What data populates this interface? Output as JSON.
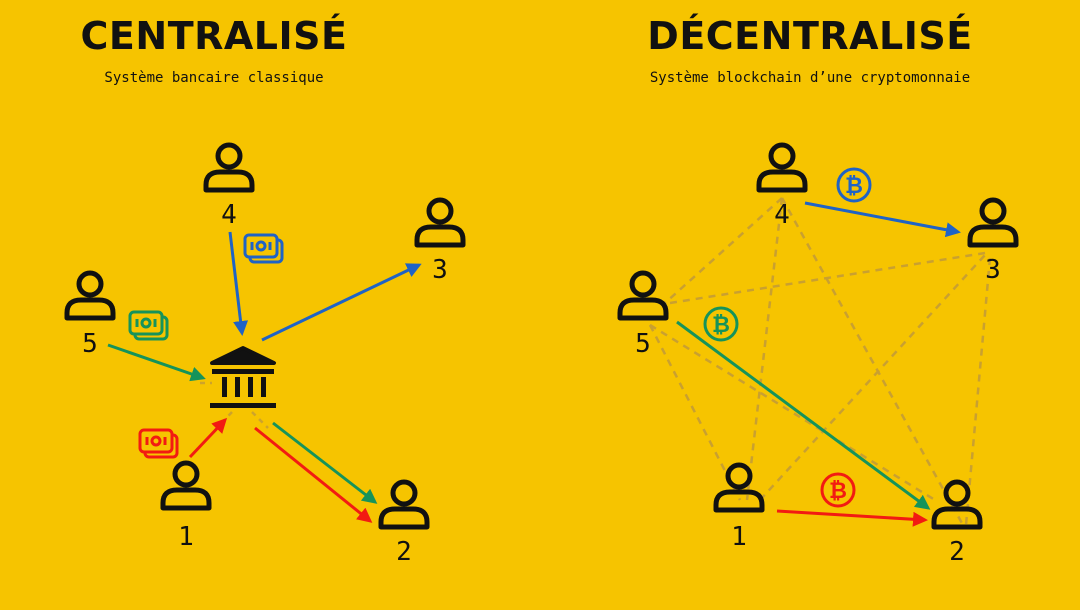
{
  "centralized": {
    "title": "CENTRALISÉ",
    "subtitle": "Système bancaire classique",
    "node_labels": [
      "1",
      "2",
      "3",
      "4",
      "5"
    ]
  },
  "decentralized": {
    "title": "DÉCENTRALISÉ",
    "subtitle": "Système blockchain d’une cryptomonnaie",
    "node_labels": [
      "1",
      "2",
      "3",
      "4",
      "5"
    ]
  },
  "icons": {
    "person": "user-icon",
    "bank": "bank-icon",
    "cash": "cash-icon",
    "bitcoin": "bitcoin-icon"
  },
  "colors": {
    "background": "#F6C400",
    "ink": "#111111",
    "blue": "#1F63C6",
    "green": "#16935A",
    "red": "#F21B12",
    "dashed": "#C9A030"
  },
  "bitcoin_symbol": "₿"
}
